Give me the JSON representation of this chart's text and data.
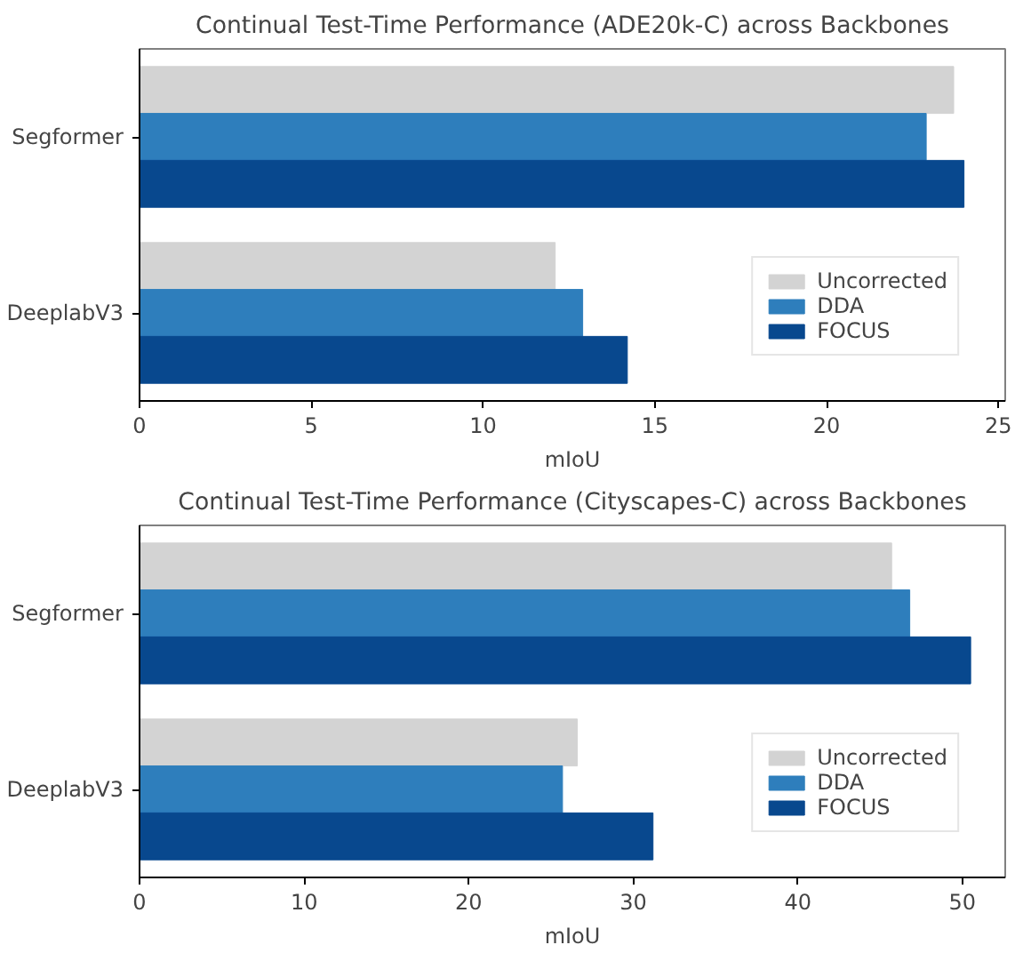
{
  "chart_data": [
    {
      "type": "bar",
      "orientation": "horizontal",
      "title": "Continual Test-Time Performance (ADE20k-C) across Backbones",
      "xlabel": "mIoU",
      "categories": [
        "Segformer",
        "DeeplabV3"
      ],
      "xlim": [
        0,
        25.2
      ],
      "xticks": [
        0,
        5,
        10,
        15,
        20,
        25
      ],
      "legend": "bottom right",
      "grid": false,
      "series": [
        {
          "name": "Uncorrected",
          "color": "#d3d3d3",
          "values": [
            23.7,
            12.1
          ]
        },
        {
          "name": "DDA",
          "color": "#2e7ebc",
          "values": [
            22.9,
            12.9
          ]
        },
        {
          "name": "FOCUS",
          "color": "#08488e",
          "values": [
            24.0,
            14.2
          ]
        }
      ]
    },
    {
      "type": "bar",
      "orientation": "horizontal",
      "title": "Continual Test-Time Performance (Cityscapes-C) across Backbones",
      "xlabel": "mIoU",
      "categories": [
        "Segformer",
        "DeeplabV3"
      ],
      "xlim": [
        0,
        52.6
      ],
      "xticks": [
        0,
        10,
        20,
        30,
        40,
        50
      ],
      "legend": "bottom right",
      "grid": false,
      "series": [
        {
          "name": "Uncorrected",
          "color": "#d3d3d3",
          "values": [
            45.7,
            26.6
          ]
        },
        {
          "name": "DDA",
          "color": "#2e7ebc",
          "values": [
            46.8,
            25.7
          ]
        },
        {
          "name": "FOCUS",
          "color": "#08488e",
          "values": [
            50.5,
            31.2
          ]
        }
      ]
    }
  ]
}
